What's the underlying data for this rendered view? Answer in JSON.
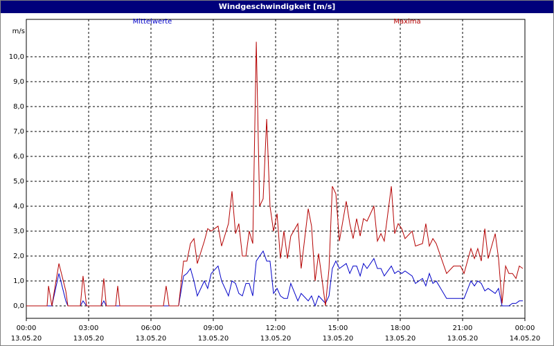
{
  "chart_data": {
    "type": "line",
    "title": "Windgeschwindigkeit [m/s]",
    "y_label": "m/s",
    "x": [
      0,
      1.0,
      1.07,
      1.23,
      1.57,
      1.9,
      2.0,
      2.6,
      2.73,
      2.9,
      3.6,
      3.73,
      3.85,
      4.3,
      4.4,
      4.5,
      6.6,
      6.73,
      6.87,
      7.33,
      7.57,
      7.73,
      7.9,
      8.07,
      8.23,
      8.57,
      8.73,
      8.9,
      9.23,
      9.4,
      9.73,
      9.9,
      10.07,
      10.23,
      10.4,
      10.57,
      10.73,
      10.9,
      11.07,
      11.23,
      11.4,
      11.57,
      11.73,
      11.9,
      12.07,
      12.23,
      12.4,
      12.57,
      12.73,
      13.07,
      13.23,
      13.57,
      13.73,
      13.9,
      14.07,
      14.4,
      14.57,
      14.73,
      14.9,
      15.07,
      15.4,
      15.57,
      15.73,
      15.9,
      16.07,
      16.23,
      16.4,
      16.73,
      16.9,
      17.07,
      17.23,
      17.57,
      17.73,
      17.9,
      18.07,
      18.23,
      18.57,
      18.73,
      19.07,
      19.23,
      19.4,
      19.57,
      19.73,
      20.23,
      20.57,
      20.9,
      21.07,
      21.4,
      21.57,
      21.73,
      21.9,
      22.07,
      22.23,
      22.57,
      22.73,
      22.9,
      23.07,
      23.23,
      23.4,
      23.57,
      23.73,
      23.9
    ],
    "series": [
      {
        "name": "Mittelwerte",
        "color": "#0000c8",
        "values": [
          0,
          0,
          0,
          0,
          1.3,
          0.2,
          0,
          0,
          0.2,
          0,
          0,
          0.2,
          0,
          0,
          0,
          0,
          0,
          0,
          0,
          0,
          1.2,
          1.3,
          1.5,
          1.0,
          0.4,
          1.0,
          0.7,
          1.3,
          1.6,
          1.0,
          0.4,
          1.0,
          0.9,
          0.5,
          0.4,
          0.9,
          0.9,
          0.4,
          1.8,
          2.0,
          2.2,
          1.8,
          1.8,
          0.5,
          0.7,
          0.4,
          0.3,
          0.3,
          0.9,
          0.2,
          0.5,
          0.2,
          0.4,
          0.0,
          0.4,
          0.1,
          0.4,
          1.5,
          1.8,
          1.5,
          1.7,
          1.3,
          1.6,
          1.6,
          1.2,
          1.7,
          1.5,
          1.9,
          1.5,
          1.5,
          1.2,
          1.6,
          1.3,
          1.4,
          1.3,
          1.4,
          1.2,
          0.9,
          1.1,
          0.8,
          1.3,
          0.9,
          1.0,
          0.3,
          0.3,
          0.3,
          0.3,
          1.0,
          0.8,
          1.0,
          0.9,
          0.6,
          0.7,
          0.5,
          0.7,
          0.0,
          0.0,
          0.0,
          0.1,
          0.1,
          0.2,
          0.2
        ]
      },
      {
        "name": "Maxima",
        "color": "#b40000",
        "values": [
          0,
          0,
          0.8,
          0,
          1.7,
          0.6,
          0,
          0,
          1.2,
          0,
          0,
          1.1,
          0,
          0,
          0.8,
          0,
          0,
          0.8,
          0,
          0,
          1.8,
          1.8,
          2.5,
          2.7,
          1.7,
          2.6,
          3.1,
          3.0,
          3.2,
          2.4,
          3.3,
          4.6,
          2.9,
          3.3,
          2.0,
          2.0,
          3.0,
          2.5,
          10.6,
          4.0,
          4.3,
          7.5,
          4.0,
          3.0,
          3.7,
          1.9,
          3.0,
          1.9,
          2.8,
          3.3,
          1.5,
          3.9,
          3.2,
          1.0,
          2.1,
          0.0,
          1.5,
          4.8,
          4.5,
          2.6,
          4.2,
          3.3,
          2.7,
          3.5,
          2.8,
          3.5,
          3.4,
          4.0,
          2.6,
          2.9,
          2.6,
          4.8,
          2.9,
          3.3,
          3.1,
          2.7,
          3.0,
          2.4,
          2.5,
          3.3,
          2.4,
          2.7,
          2.5,
          1.3,
          1.6,
          1.6,
          1.3,
          2.3,
          1.9,
          2.3,
          1.8,
          3.1,
          1.9,
          2.9,
          1.9,
          0.1,
          1.6,
          1.3,
          1.3,
          1.1,
          1.6,
          1.5
        ]
      }
    ],
    "xlim": [
      0,
      24
    ],
    "xticks": [
      {
        "value": 0,
        "label": "00:00",
        "date": "13.05.20"
      },
      {
        "value": 3,
        "label": "03:00",
        "date": "13.05.20"
      },
      {
        "value": 6,
        "label": "06:00",
        "date": "13.05.20"
      },
      {
        "value": 9,
        "label": "09:00",
        "date": "13.05.20"
      },
      {
        "value": 12,
        "label": "12:00",
        "date": "13.05.20"
      },
      {
        "value": 15,
        "label": "15:00",
        "date": "13.05.20"
      },
      {
        "value": 18,
        "label": "18:00",
        "date": "13.05.20"
      },
      {
        "value": 21,
        "label": "21:00",
        "date": "13.05.20"
      },
      {
        "value": 24,
        "label": "00:00",
        "date": "14.05.20"
      }
    ],
    "ylim": [
      -0.5,
      11.5
    ],
    "yticks": [
      {
        "value": 0,
        "label": "0,0"
      },
      {
        "value": 1,
        "label": "1,0"
      },
      {
        "value": 2,
        "label": "2,0"
      },
      {
        "value": 3,
        "label": "3,0"
      },
      {
        "value": 4,
        "label": "4,0"
      },
      {
        "value": 5,
        "label": "5,0"
      },
      {
        "value": 6,
        "label": "6,0"
      },
      {
        "value": 7,
        "label": "7,0"
      },
      {
        "value": 8,
        "label": "8,0"
      },
      {
        "value": 9,
        "label": "9,0"
      },
      {
        "value": 10,
        "label": "10,0"
      }
    ],
    "grid": true
  }
}
